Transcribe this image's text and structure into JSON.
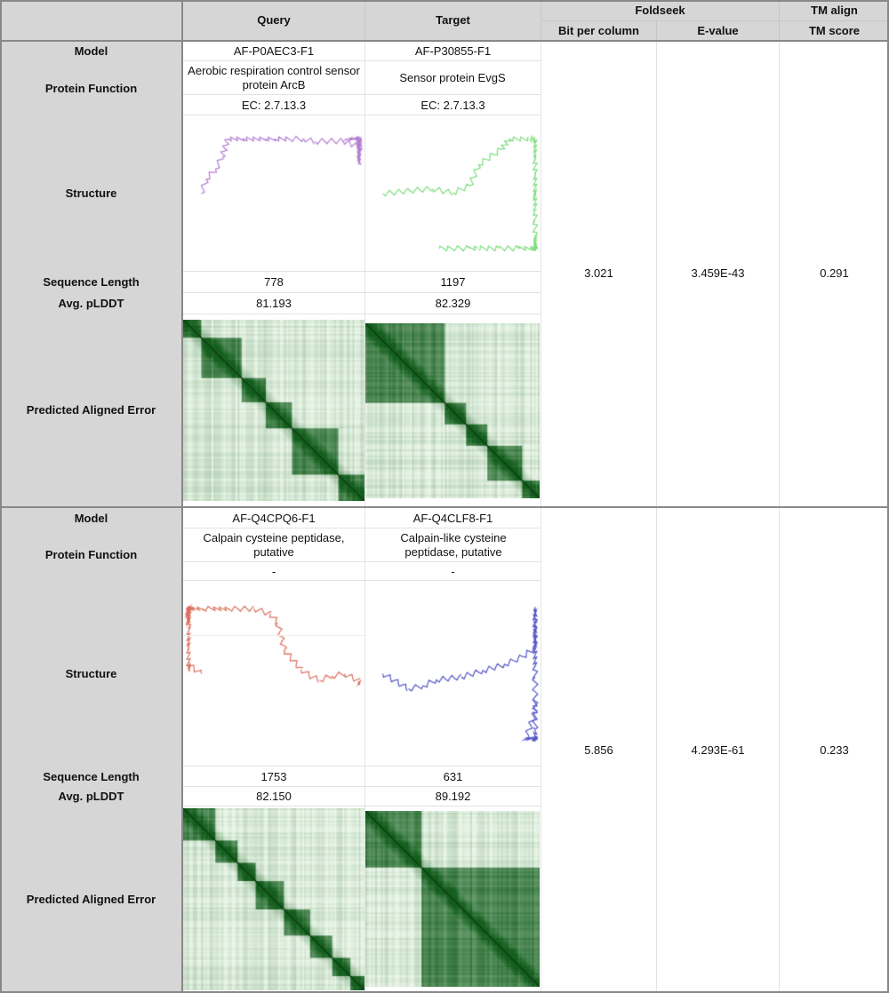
{
  "header": {
    "query": "Query",
    "target": "Target",
    "foldseek": "Foldseek",
    "tm_align": "TM align",
    "bit_per_column": "Bit per column",
    "e_value": "E-value",
    "tm_score": "TM score"
  },
  "row_labels": {
    "model": "Model",
    "protein_function": "Protein Function",
    "structure": "Structure",
    "sequence_length": "Sequence Length",
    "avg_plddt": "Avg. pLDDT",
    "pae": "Predicted Aligned Error"
  },
  "pairs": [
    {
      "query": {
        "model": "AF-P0AEC3-F1",
        "function": "Aerobic respiration control sensor protein ArcB",
        "ec": "EC: 2.7.13.3",
        "sequence_length": "778",
        "avg_plddt": "81.193",
        "structure_color": "#b57fd0",
        "structure_icon": "protein-structure-cartoon",
        "pae_domains": [
          0,
          0.1,
          0.32,
          0.45,
          0.6,
          0.85,
          1.0
        ]
      },
      "target": {
        "model": "AF-P30855-F1",
        "function": "Sensor protein EvgS",
        "ec": "EC: 2.7.13.3",
        "sequence_length": "1197",
        "avg_plddt": "82.329",
        "structure_color": "#7fdc7f",
        "structure_icon": "protein-structure-cartoon",
        "pae_domains": [
          0,
          0.45,
          0.58,
          0.7,
          0.9,
          1.0
        ]
      },
      "bit_per_column": "3.021",
      "e_value": "3.459E-43",
      "tm_score": "0.291"
    },
    {
      "query": {
        "model": "AF-Q4CPQ6-F1",
        "function": "Calpain cysteine peptidase, putative",
        "ec": "-",
        "sequence_length": "1753",
        "avg_plddt": "82.150",
        "structure_color": "#d9705e",
        "structure_icon": "protein-structure-cartoon",
        "pae_domains": [
          0,
          0.18,
          0.3,
          0.4,
          0.55,
          0.7,
          0.82,
          0.92,
          1.0
        ]
      },
      "target": {
        "model": "AF-Q4CLF8-F1",
        "function": "Calpain-like cysteine peptidase, putative",
        "ec": "-",
        "sequence_length": "631",
        "avg_plddt": "89.192",
        "structure_color": "#5555c8",
        "structure_icon": "protein-structure-cartoon",
        "pae_domains": [
          0,
          0.32,
          1.0
        ]
      },
      "bit_per_column": "5.856",
      "e_value": "4.293E-61",
      "tm_score": "0.233"
    }
  ]
}
